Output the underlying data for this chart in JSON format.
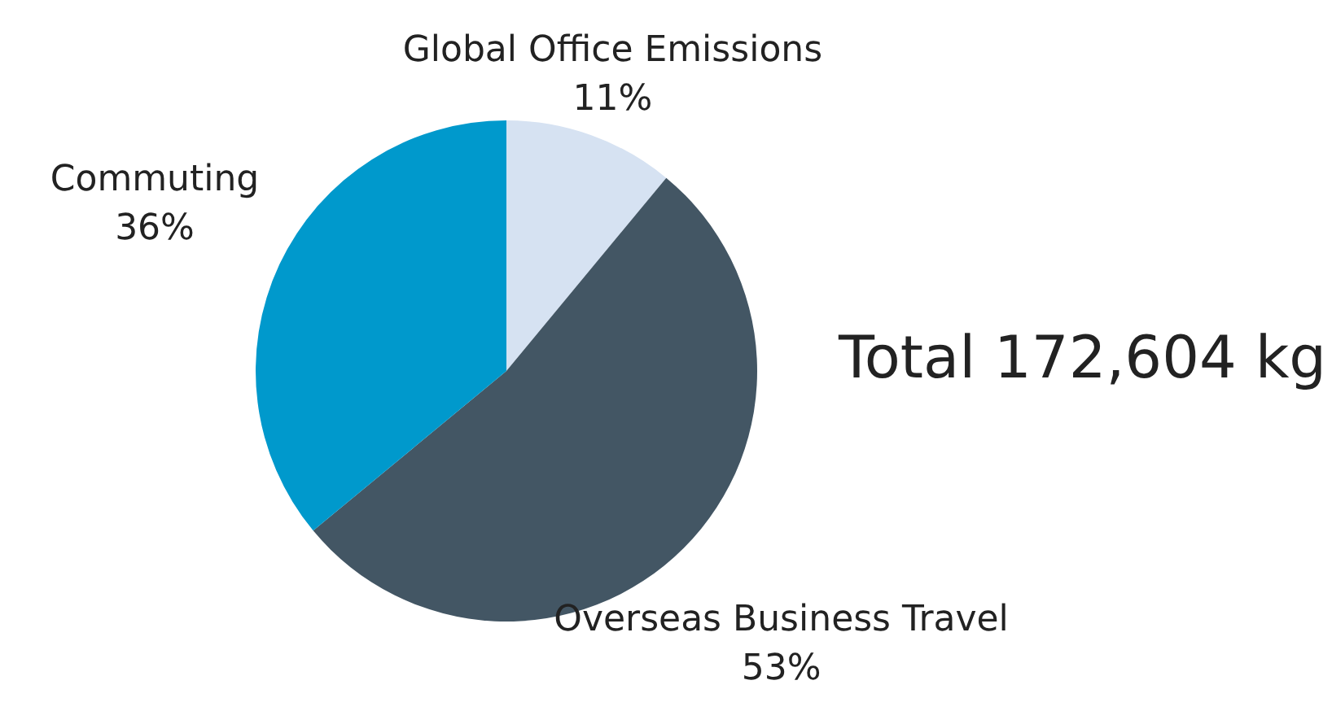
{
  "chart_data": {
    "type": "pie",
    "categories": [
      "Global Office Emissions",
      "Overseas Business Travel",
      "Commuting"
    ],
    "values": [
      11,
      53,
      36
    ],
    "colors": [
      "#d6e2f2",
      "#435664",
      "#0099cc"
    ],
    "value_labels": [
      "11%",
      "53%",
      "36%"
    ],
    "annotations": [
      "Total 172,604 kg"
    ]
  }
}
